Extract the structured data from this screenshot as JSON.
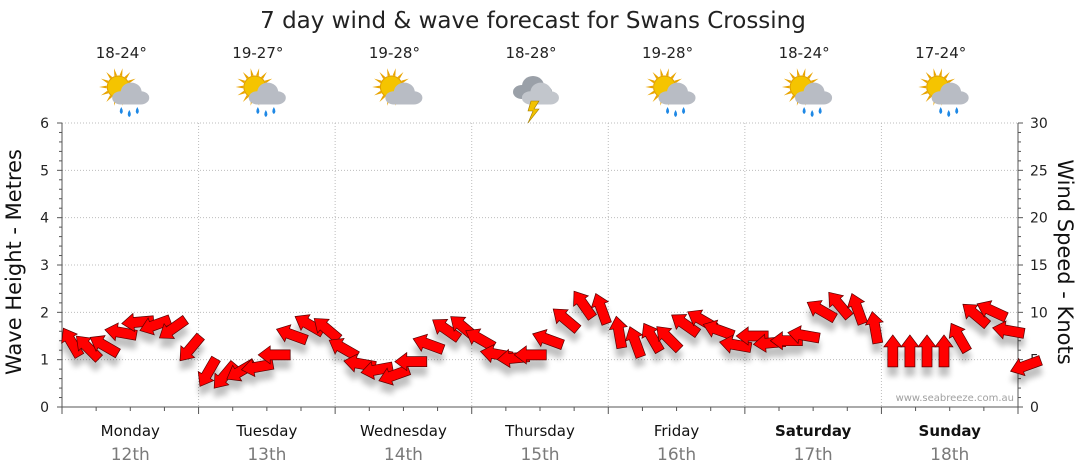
{
  "title": "7 day wind & wave forecast for Swans Crossing",
  "credit": "www.seabreeze.com.au",
  "days": [
    {
      "name": "Monday",
      "num": "12th",
      "temp": "18-24°",
      "icon": "sun-cloud-rain-icon",
      "bold": false
    },
    {
      "name": "Tuesday",
      "num": "13th",
      "temp": "19-27°",
      "icon": "sun-cloud-rain-icon",
      "bold": false
    },
    {
      "name": "Wednesday",
      "num": "14th",
      "temp": "19-28°",
      "icon": "sun-cloud-icon",
      "bold": false
    },
    {
      "name": "Thursday",
      "num": "15th",
      "temp": "18-28°",
      "icon": "storm-cloud-icon",
      "bold": false
    },
    {
      "name": "Friday",
      "num": "16th",
      "temp": "19-28°",
      "icon": "sun-cloud-rain-icon",
      "bold": false
    },
    {
      "name": "Saturday",
      "num": "17th",
      "temp": "18-24°",
      "icon": "sun-cloud-rain-icon",
      "bold": true
    },
    {
      "name": "Sunday",
      "num": "18th",
      "temp": "17-24°",
      "icon": "sun-cloud-rain-icon",
      "bold": true
    }
  ],
  "colors": {
    "arrow_fill": "#ff0000",
    "arrow_stroke": "#5a0000",
    "sun": "#f5c400",
    "cloud": "#b8bcc4",
    "rain": "#1e88e5",
    "bolt": "#f2c200"
  },
  "chart_data": {
    "type": "line",
    "title": "7 day wind & wave forecast for Swans Crossing",
    "ylabel_left": "Wave Height - Metres",
    "ylabel_right": "Wind Speed - Knots",
    "ylim_left": [
      0,
      6
    ],
    "ylim_right": [
      0,
      30
    ],
    "yticks_left": [
      "0",
      "1",
      "2",
      "3",
      "4",
      "5",
      "6"
    ],
    "yticks_right": [
      "0",
      "5",
      "10",
      "15",
      "20",
      "25",
      "30"
    ],
    "grid": true,
    "x_unit": "hours from Monday 00:00",
    "series": [
      {
        "name": "Wind Speed - Knots",
        "points": [
          {
            "x": 0,
            "y": 6.5,
            "dir": -30
          },
          {
            "x": 3,
            "y": 6.0,
            "dir": -45
          },
          {
            "x": 6,
            "y": 6.3,
            "dir": -60
          },
          {
            "x": 9,
            "y": 7.8,
            "dir": -80
          },
          {
            "x": 12,
            "y": 9.0,
            "dir": -95
          },
          {
            "x": 15,
            "y": 8.8,
            "dir": -110
          },
          {
            "x": 18,
            "y": 8.5,
            "dir": -125
          },
          {
            "x": 21,
            "y": 6.5,
            "dir": -140
          },
          {
            "x": 24,
            "y": 4.0,
            "dir": -150
          },
          {
            "x": 27,
            "y": 3.6,
            "dir": -140
          },
          {
            "x": 30,
            "y": 4.0,
            "dir": -120
          },
          {
            "x": 33,
            "y": 4.3,
            "dir": -100
          },
          {
            "x": 36,
            "y": 5.5,
            "dir": -90
          },
          {
            "x": 39,
            "y": 7.5,
            "dir": -70
          },
          {
            "x": 42,
            "y": 8.5,
            "dir": -60
          },
          {
            "x": 45,
            "y": 8.0,
            "dir": -50
          },
          {
            "x": 48,
            "y": 6.0,
            "dir": -60
          },
          {
            "x": 51,
            "y": 4.5,
            "dir": -80
          },
          {
            "x": 54,
            "y": 4.0,
            "dir": -100
          },
          {
            "x": 57,
            "y": 3.5,
            "dir": -110
          },
          {
            "x": 60,
            "y": 4.8,
            "dir": -90
          },
          {
            "x": 63,
            "y": 6.5,
            "dir": -70
          },
          {
            "x": 66,
            "y": 8.0,
            "dir": -55
          },
          {
            "x": 69,
            "y": 8.2,
            "dir": -50
          },
          {
            "x": 72,
            "y": 7.0,
            "dir": -60
          },
          {
            "x": 75,
            "y": 5.5,
            "dir": -80
          },
          {
            "x": 78,
            "y": 5.2,
            "dir": -95
          },
          {
            "x": 81,
            "y": 5.5,
            "dir": -90
          },
          {
            "x": 84,
            "y": 7.0,
            "dir": -70
          },
          {
            "x": 87,
            "y": 9.0,
            "dir": -50
          },
          {
            "x": 90,
            "y": 10.5,
            "dir": -35
          },
          {
            "x": 93,
            "y": 10.0,
            "dir": -20
          },
          {
            "x": 96,
            "y": 7.5,
            "dir": -10
          },
          {
            "x": 99,
            "y": 6.5,
            "dir": -20
          },
          {
            "x": 102,
            "y": 7.0,
            "dir": -30
          },
          {
            "x": 105,
            "y": 7.0,
            "dir": -45
          },
          {
            "x": 108,
            "y": 8.5,
            "dir": -55
          },
          {
            "x": 111,
            "y": 9.0,
            "dir": -60
          },
          {
            "x": 114,
            "y": 8.0,
            "dir": -70
          },
          {
            "x": 117,
            "y": 6.5,
            "dir": -80
          },
          {
            "x": 120,
            "y": 7.5,
            "dir": -90
          },
          {
            "x": 123,
            "y": 6.8,
            "dir": -95
          },
          {
            "x": 126,
            "y": 7.0,
            "dir": -90
          },
          {
            "x": 129,
            "y": 7.5,
            "dir": -80
          },
          {
            "x": 132,
            "y": 10.0,
            "dir": -60
          },
          {
            "x": 135,
            "y": 10.5,
            "dir": -40
          },
          {
            "x": 138,
            "y": 10.0,
            "dir": -20
          },
          {
            "x": 141,
            "y": 8.0,
            "dir": -10
          },
          {
            "x": 144,
            "y": 5.5,
            "dir": 0
          },
          {
            "x": 147,
            "y": 5.5,
            "dir": 0
          },
          {
            "x": 150,
            "y": 5.5,
            "dir": 0
          },
          {
            "x": 153,
            "y": 5.5,
            "dir": 0
          },
          {
            "x": 156,
            "y": 7.0,
            "dir": -30
          },
          {
            "x": 159,
            "y": 9.5,
            "dir": -50
          },
          {
            "x": 162,
            "y": 10.0,
            "dir": -65
          },
          {
            "x": 165,
            "y": 8.0,
            "dir": -80
          },
          {
            "x": 168,
            "y": 4.5,
            "dir": -110
          }
        ]
      }
    ]
  }
}
